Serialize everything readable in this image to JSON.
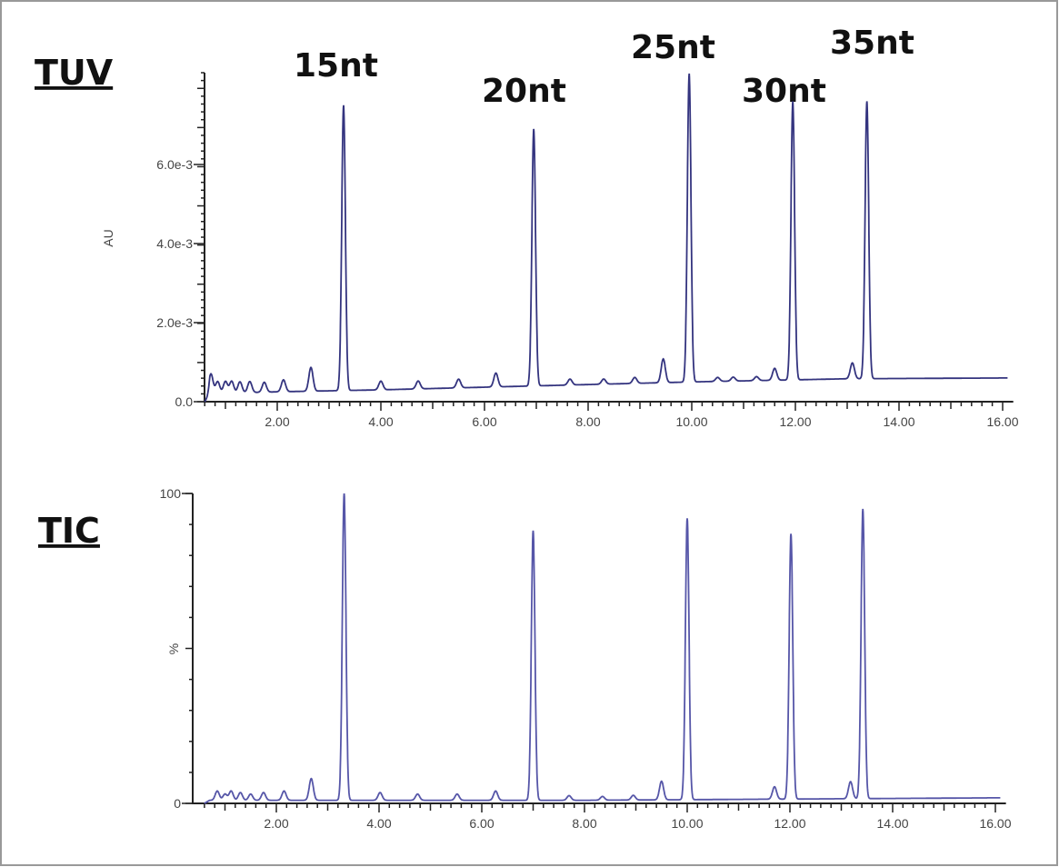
{
  "chart_data": [
    {
      "type": "line",
      "panel_label": "TUV",
      "ylabel": "AU",
      "xlim": [
        0.6,
        16.1
      ],
      "ylim": [
        0,
        0.0083
      ],
      "x_ticks": [
        "2.00",
        "4.00",
        "6.00",
        "8.00",
        "10.00",
        "12.00",
        "14.00",
        "16.00"
      ],
      "y_ticks": [
        "0.0",
        "2.0e-3",
        "4.0e-3",
        "6.0e-3"
      ],
      "y_tick_values": [
        0,
        0.002,
        0.004,
        0.006
      ],
      "color": "#34347f",
      "baseline": [
        [
          0.6,
          0.0002
        ],
        [
          2,
          0.00025
        ],
        [
          4,
          0.0003
        ],
        [
          7,
          0.0004
        ],
        [
          10,
          0.0005
        ],
        [
          13,
          0.00058
        ],
        [
          16.1,
          0.0006
        ]
      ],
      "peaks": [
        {
          "rt": 3.28,
          "height": 0.0075,
          "label": "15nt"
        },
        {
          "rt": 6.95,
          "height": 0.0069,
          "label": "20nt"
        },
        {
          "rt": 9.95,
          "height": 0.0083,
          "label": "25nt"
        },
        {
          "rt": 11.95,
          "height": 0.0076,
          "label": "30nt"
        },
        {
          "rt": 13.38,
          "height": 0.0076,
          "label": "35nt"
        }
      ],
      "minor_peaks": [
        [
          0.72,
          0.0005
        ],
        [
          0.85,
          0.0003
        ],
        [
          1.0,
          0.0003
        ],
        [
          1.12,
          0.0003
        ],
        [
          1.28,
          0.00028
        ],
        [
          1.47,
          0.00028
        ],
        [
          1.75,
          0.00025
        ],
        [
          2.12,
          0.0003
        ],
        [
          2.65,
          0.0006
        ],
        [
          4.0,
          0.00022
        ],
        [
          4.72,
          0.0002
        ],
        [
          5.5,
          0.00022
        ],
        [
          6.22,
          0.00035
        ],
        [
          7.65,
          0.00015
        ],
        [
          8.3,
          0.00013
        ],
        [
          8.9,
          0.00015
        ],
        [
          9.45,
          0.0006
        ],
        [
          10.5,
          0.0001
        ],
        [
          10.8,
          0.0001
        ],
        [
          11.25,
          0.0001
        ],
        [
          11.6,
          0.0003
        ],
        [
          13.1,
          0.0004
        ]
      ],
      "peak_labels": [
        "15nt",
        "20nt",
        "25nt",
        "30nt",
        "35nt"
      ]
    },
    {
      "type": "line",
      "panel_label": "TIC",
      "ylabel": "%",
      "xlim": [
        0.6,
        16.1
      ],
      "ylim": [
        0,
        100
      ],
      "x_ticks": [
        "2.00",
        "4.00",
        "6.00",
        "8.00",
        "10.00",
        "12.00",
        "14.00",
        "16.00"
      ],
      "y_ticks": [
        "0",
        "100"
      ],
      "y_tick_values": [
        0,
        100
      ],
      "color": "#5656a8",
      "baseline": [
        [
          0.6,
          1
        ],
        [
          8,
          1
        ],
        [
          16.1,
          1.8
        ]
      ],
      "peaks": [
        {
          "rt": 3.32,
          "height": 100
        },
        {
          "rt": 7.0,
          "height": 88
        },
        {
          "rt": 10.0,
          "height": 92
        },
        {
          "rt": 12.02,
          "height": 87
        },
        {
          "rt": 13.42,
          "height": 95
        }
      ],
      "minor_peaks": [
        [
          0.85,
          3
        ],
        [
          1.0,
          2
        ],
        [
          1.12,
          3
        ],
        [
          1.3,
          2.5
        ],
        [
          1.5,
          2
        ],
        [
          1.75,
          2.5
        ],
        [
          2.15,
          3
        ],
        [
          2.68,
          7
        ],
        [
          4.02,
          2.5
        ],
        [
          4.75,
          2
        ],
        [
          5.52,
          2
        ],
        [
          6.27,
          3
        ],
        [
          7.7,
          1.5
        ],
        [
          8.35,
          1.2
        ],
        [
          8.95,
          1.5
        ],
        [
          9.5,
          6
        ],
        [
          11.7,
          4
        ],
        [
          13.18,
          5.5
        ]
      ]
    }
  ]
}
